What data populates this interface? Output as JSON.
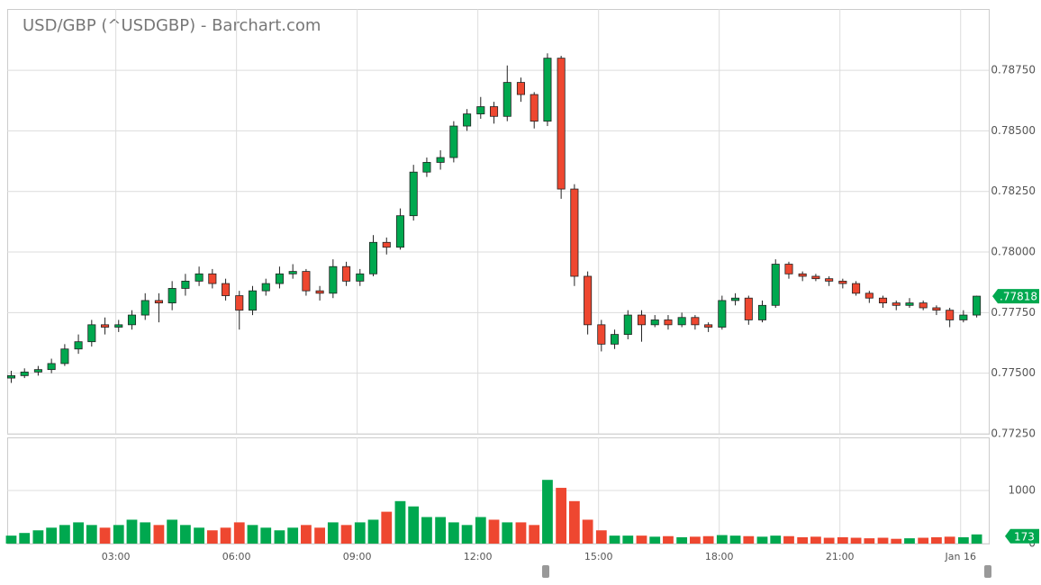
{
  "chart_data": {
    "type": "candlestick",
    "title": "USD/GBP (^USDGBP) - Barchart.com",
    "up_color": "#00a84f",
    "down_color": "#ee4730",
    "flat_color": "#1f4fb5",
    "grid": true,
    "x": [
      0.4,
      0.73,
      1.07,
      1.4,
      1.73,
      2.07,
      2.4,
      2.73,
      3.07,
      3.4,
      3.73,
      4.07,
      4.4,
      4.73,
      5.07,
      5.4,
      5.73,
      6.07,
      6.4,
      6.73,
      7.07,
      7.4,
      7.73,
      8.07,
      8.4,
      8.73,
      9.07,
      9.4,
      9.73,
      10.07,
      10.4,
      10.73,
      11.07,
      11.4,
      11.73,
      12.07,
      12.4,
      12.73,
      13.07,
      13.4,
      13.73,
      14.07,
      14.4,
      14.73,
      15.07,
      15.4,
      15.73,
      16.07,
      16.4,
      16.73,
      17.07,
      17.4,
      17.73,
      18.07,
      18.4,
      18.73,
      19.07,
      19.4,
      19.73,
      20.07,
      20.4,
      20.73,
      21.07,
      21.4,
      21.73,
      22.07,
      22.4,
      22.73,
      23.07,
      23.4,
      23.73,
      24.07,
      24.4
    ],
    "open": [
      0.7748,
      0.7749,
      0.77505,
      0.77515,
      0.7754,
      0.776,
      0.7763,
      0.777,
      0.7769,
      0.777,
      0.7774,
      0.778,
      0.7779,
      0.7785,
      0.7788,
      0.7791,
      0.7787,
      0.7782,
      0.7776,
      0.7784,
      0.7787,
      0.7791,
      0.7792,
      0.7784,
      0.7783,
      0.7794,
      0.7788,
      0.7791,
      0.7804,
      0.7802,
      0.7815,
      0.7833,
      0.7837,
      0.7839,
      0.7852,
      0.7857,
      0.786,
      0.7856,
      0.787,
      0.7865,
      0.7854,
      0.788,
      0.7826,
      0.779,
      0.777,
      0.7762,
      0.7766,
      0.7774,
      0.777,
      0.7772,
      0.777,
      0.7773,
      0.777,
      0.7769,
      0.778,
      0.7781,
      0.7772,
      0.7778,
      0.7795,
      0.7791,
      0.779,
      0.7789,
      0.7788,
      0.7787,
      0.7783,
      0.7781,
      0.7779,
      0.7778,
      0.7779,
      0.7777,
      0.7776,
      0.7772,
      0.7774
    ],
    "high": [
      0.7751,
      0.7752,
      0.7753,
      0.7756,
      0.7762,
      0.7766,
      0.7772,
      0.7773,
      0.7772,
      0.7776,
      0.7783,
      0.7783,
      0.7788,
      0.7791,
      0.7794,
      0.7793,
      0.7789,
      0.7784,
      0.7786,
      0.7789,
      0.7794,
      0.7795,
      0.7793,
      0.7786,
      0.7797,
      0.7796,
      0.7793,
      0.7807,
      0.7806,
      0.7818,
      0.7836,
      0.7839,
      0.7842,
      0.7854,
      0.7859,
      0.7864,
      0.7862,
      0.7877,
      0.7872,
      0.7866,
      0.7882,
      0.7881,
      0.7828,
      0.7792,
      0.7772,
      0.7768,
      0.7776,
      0.7776,
      0.7774,
      0.7774,
      0.7775,
      0.7774,
      0.7771,
      0.7782,
      0.7783,
      0.7782,
      0.778,
      0.7797,
      0.7796,
      0.7792,
      0.7791,
      0.779,
      0.7789,
      0.7788,
      0.7784,
      0.7782,
      0.778,
      0.7781,
      0.778,
      0.7778,
      0.7777,
      0.7776,
      0.7782
    ],
    "low": [
      0.7746,
      0.7748,
      0.7749,
      0.775,
      0.7753,
      0.7758,
      0.7761,
      0.7766,
      0.7767,
      0.7768,
      0.7772,
      0.7771,
      0.7776,
      0.7782,
      0.7786,
      0.7785,
      0.778,
      0.7768,
      0.7774,
      0.7782,
      0.7785,
      0.7789,
      0.7782,
      0.778,
      0.7781,
      0.7786,
      0.7786,
      0.779,
      0.7799,
      0.7801,
      0.7813,
      0.7831,
      0.7834,
      0.7837,
      0.785,
      0.7855,
      0.7853,
      0.7854,
      0.7862,
      0.7851,
      0.7852,
      0.7822,
      0.7786,
      0.7766,
      0.7759,
      0.776,
      0.7764,
      0.7763,
      0.7769,
      0.7768,
      0.7769,
      0.7768,
      0.7767,
      0.7768,
      0.7778,
      0.777,
      0.7771,
      0.7777,
      0.7789,
      0.7788,
      0.7788,
      0.7786,
      0.7785,
      0.7782,
      0.7779,
      0.7777,
      0.7776,
      0.7777,
      0.7776,
      0.7774,
      0.7769,
      0.7771,
      0.7773
    ],
    "close": [
      0.7749,
      0.77505,
      0.77515,
      0.7754,
      0.776,
      0.7763,
      0.777,
      0.7769,
      0.777,
      0.7774,
      0.778,
      0.7779,
      0.7785,
      0.7788,
      0.7791,
      0.7787,
      0.7782,
      0.7776,
      0.7784,
      0.7787,
      0.7791,
      0.7792,
      0.7784,
      0.7783,
      0.7794,
      0.7788,
      0.7791,
      0.7804,
      0.7802,
      0.7815,
      0.7833,
      0.7837,
      0.7839,
      0.7852,
      0.7857,
      0.786,
      0.7856,
      0.787,
      0.7865,
      0.7854,
      0.788,
      0.7826,
      0.779,
      0.777,
      0.7762,
      0.7766,
      0.7774,
      0.777,
      0.7772,
      0.777,
      0.7773,
      0.777,
      0.7769,
      0.778,
      0.7781,
      0.7772,
      0.7778,
      0.7795,
      0.7791,
      0.779,
      0.7789,
      0.7788,
      0.7787,
      0.7783,
      0.7781,
      0.7779,
      0.7778,
      0.7779,
      0.7777,
      0.7776,
      0.7772,
      0.7774,
      0.77818
    ],
    "volume": [
      150,
      200,
      250,
      300,
      350,
      400,
      350,
      300,
      350,
      450,
      400,
      350,
      450,
      350,
      300,
      250,
      300,
      400,
      350,
      300,
      250,
      300,
      350,
      300,
      400,
      350,
      400,
      450,
      600,
      800,
      700,
      500,
      500,
      400,
      350,
      500,
      450,
      400,
      400,
      350,
      1200,
      1050,
      800,
      450,
      250,
      150,
      150,
      150,
      130,
      140,
      120,
      130,
      140,
      160,
      150,
      140,
      130,
      150,
      140,
      120,
      130,
      110,
      120,
      110,
      100,
      110,
      90,
      100,
      110,
      120,
      130,
      120,
      173
    ],
    "last_price_label": ".77818",
    "xlim": [
      0.3,
      24.7
    ],
    "xticks": [
      {
        "value": 3,
        "label": "03:00"
      },
      {
        "value": 6,
        "label": "06:00"
      },
      {
        "value": 9,
        "label": "09:00"
      },
      {
        "value": 12,
        "label": "12:00"
      },
      {
        "value": 15,
        "label": "15:00"
      },
      {
        "value": 18,
        "label": "18:00"
      },
      {
        "value": 21,
        "label": "21:00"
      },
      {
        "value": 24,
        "label": "Jan 16"
      }
    ],
    "ylim": [
      0.7725,
      0.79003
    ],
    "yticks": [
      {
        "value": 0.7725,
        "label": "0.77250"
      },
      {
        "value": 0.775,
        "label": "0.77500"
      },
      {
        "value": 0.7775,
        "label": "0.77750"
      },
      {
        "value": 0.78,
        "label": "0.78000"
      },
      {
        "value": 0.7825,
        "label": "0.78250"
      },
      {
        "value": 0.785,
        "label": "0.78500"
      },
      {
        "value": 0.7875,
        "label": "0.78750"
      }
    ],
    "y2lim": [
      0,
      2000
    ],
    "y2ticks": [
      0,
      1000
    ]
  }
}
